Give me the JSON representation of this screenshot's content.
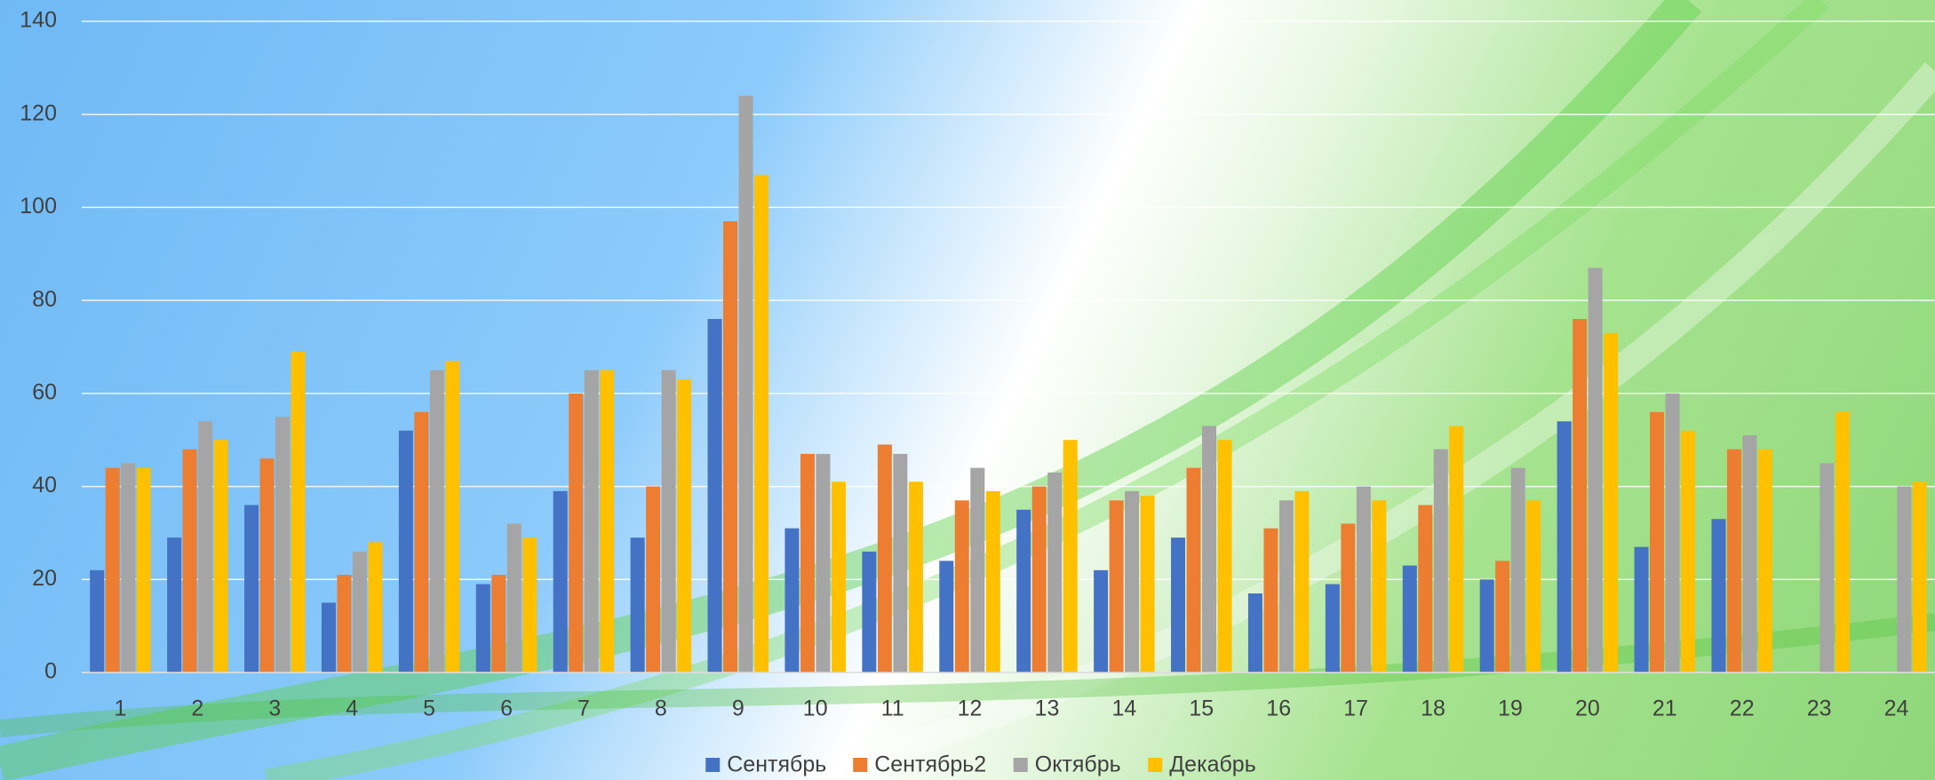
{
  "chart_data": {
    "type": "bar",
    "categories": [
      "1",
      "2",
      "3",
      "4",
      "5",
      "6",
      "7",
      "8",
      "9",
      "10",
      "11",
      "12",
      "13",
      "14",
      "15",
      "16",
      "17",
      "18",
      "19",
      "20",
      "21",
      "22",
      "23",
      "24"
    ],
    "series": [
      {
        "name": "Сентябрь",
        "color": "#4472c4",
        "values": [
          22,
          29,
          36,
          15,
          52,
          19,
          39,
          29,
          76,
          31,
          26,
          24,
          35,
          22,
          29,
          17,
          19,
          23,
          20,
          54,
          27,
          33,
          null,
          null
        ]
      },
      {
        "name": "Сентябрь2",
        "color": "#ed7d31",
        "values": [
          44,
          48,
          46,
          21,
          56,
          21,
          60,
          40,
          97,
          47,
          49,
          37,
          40,
          37,
          44,
          31,
          32,
          36,
          24,
          76,
          56,
          48,
          null,
          null
        ]
      },
      {
        "name": "Октябрь",
        "color": "#a5a5a5",
        "values": [
          45,
          54,
          55,
          26,
          65,
          32,
          65,
          65,
          124,
          47,
          47,
          44,
          43,
          39,
          53,
          37,
          40,
          48,
          44,
          87,
          60,
          51,
          45,
          40
        ]
      },
      {
        "name": "Декабрь",
        "color": "#ffc000",
        "values": [
          44,
          50,
          69,
          28,
          67,
          29,
          65,
          63,
          107,
          41,
          41,
          39,
          50,
          38,
          50,
          39,
          37,
          53,
          37,
          73,
          52,
          48,
          56,
          41
        ]
      }
    ],
    "ylim": [
      0,
      140
    ],
    "yticks": [
      0,
      20,
      40,
      60,
      80,
      100,
      120,
      140
    ],
    "grid": true,
    "legend": "bottom"
  }
}
